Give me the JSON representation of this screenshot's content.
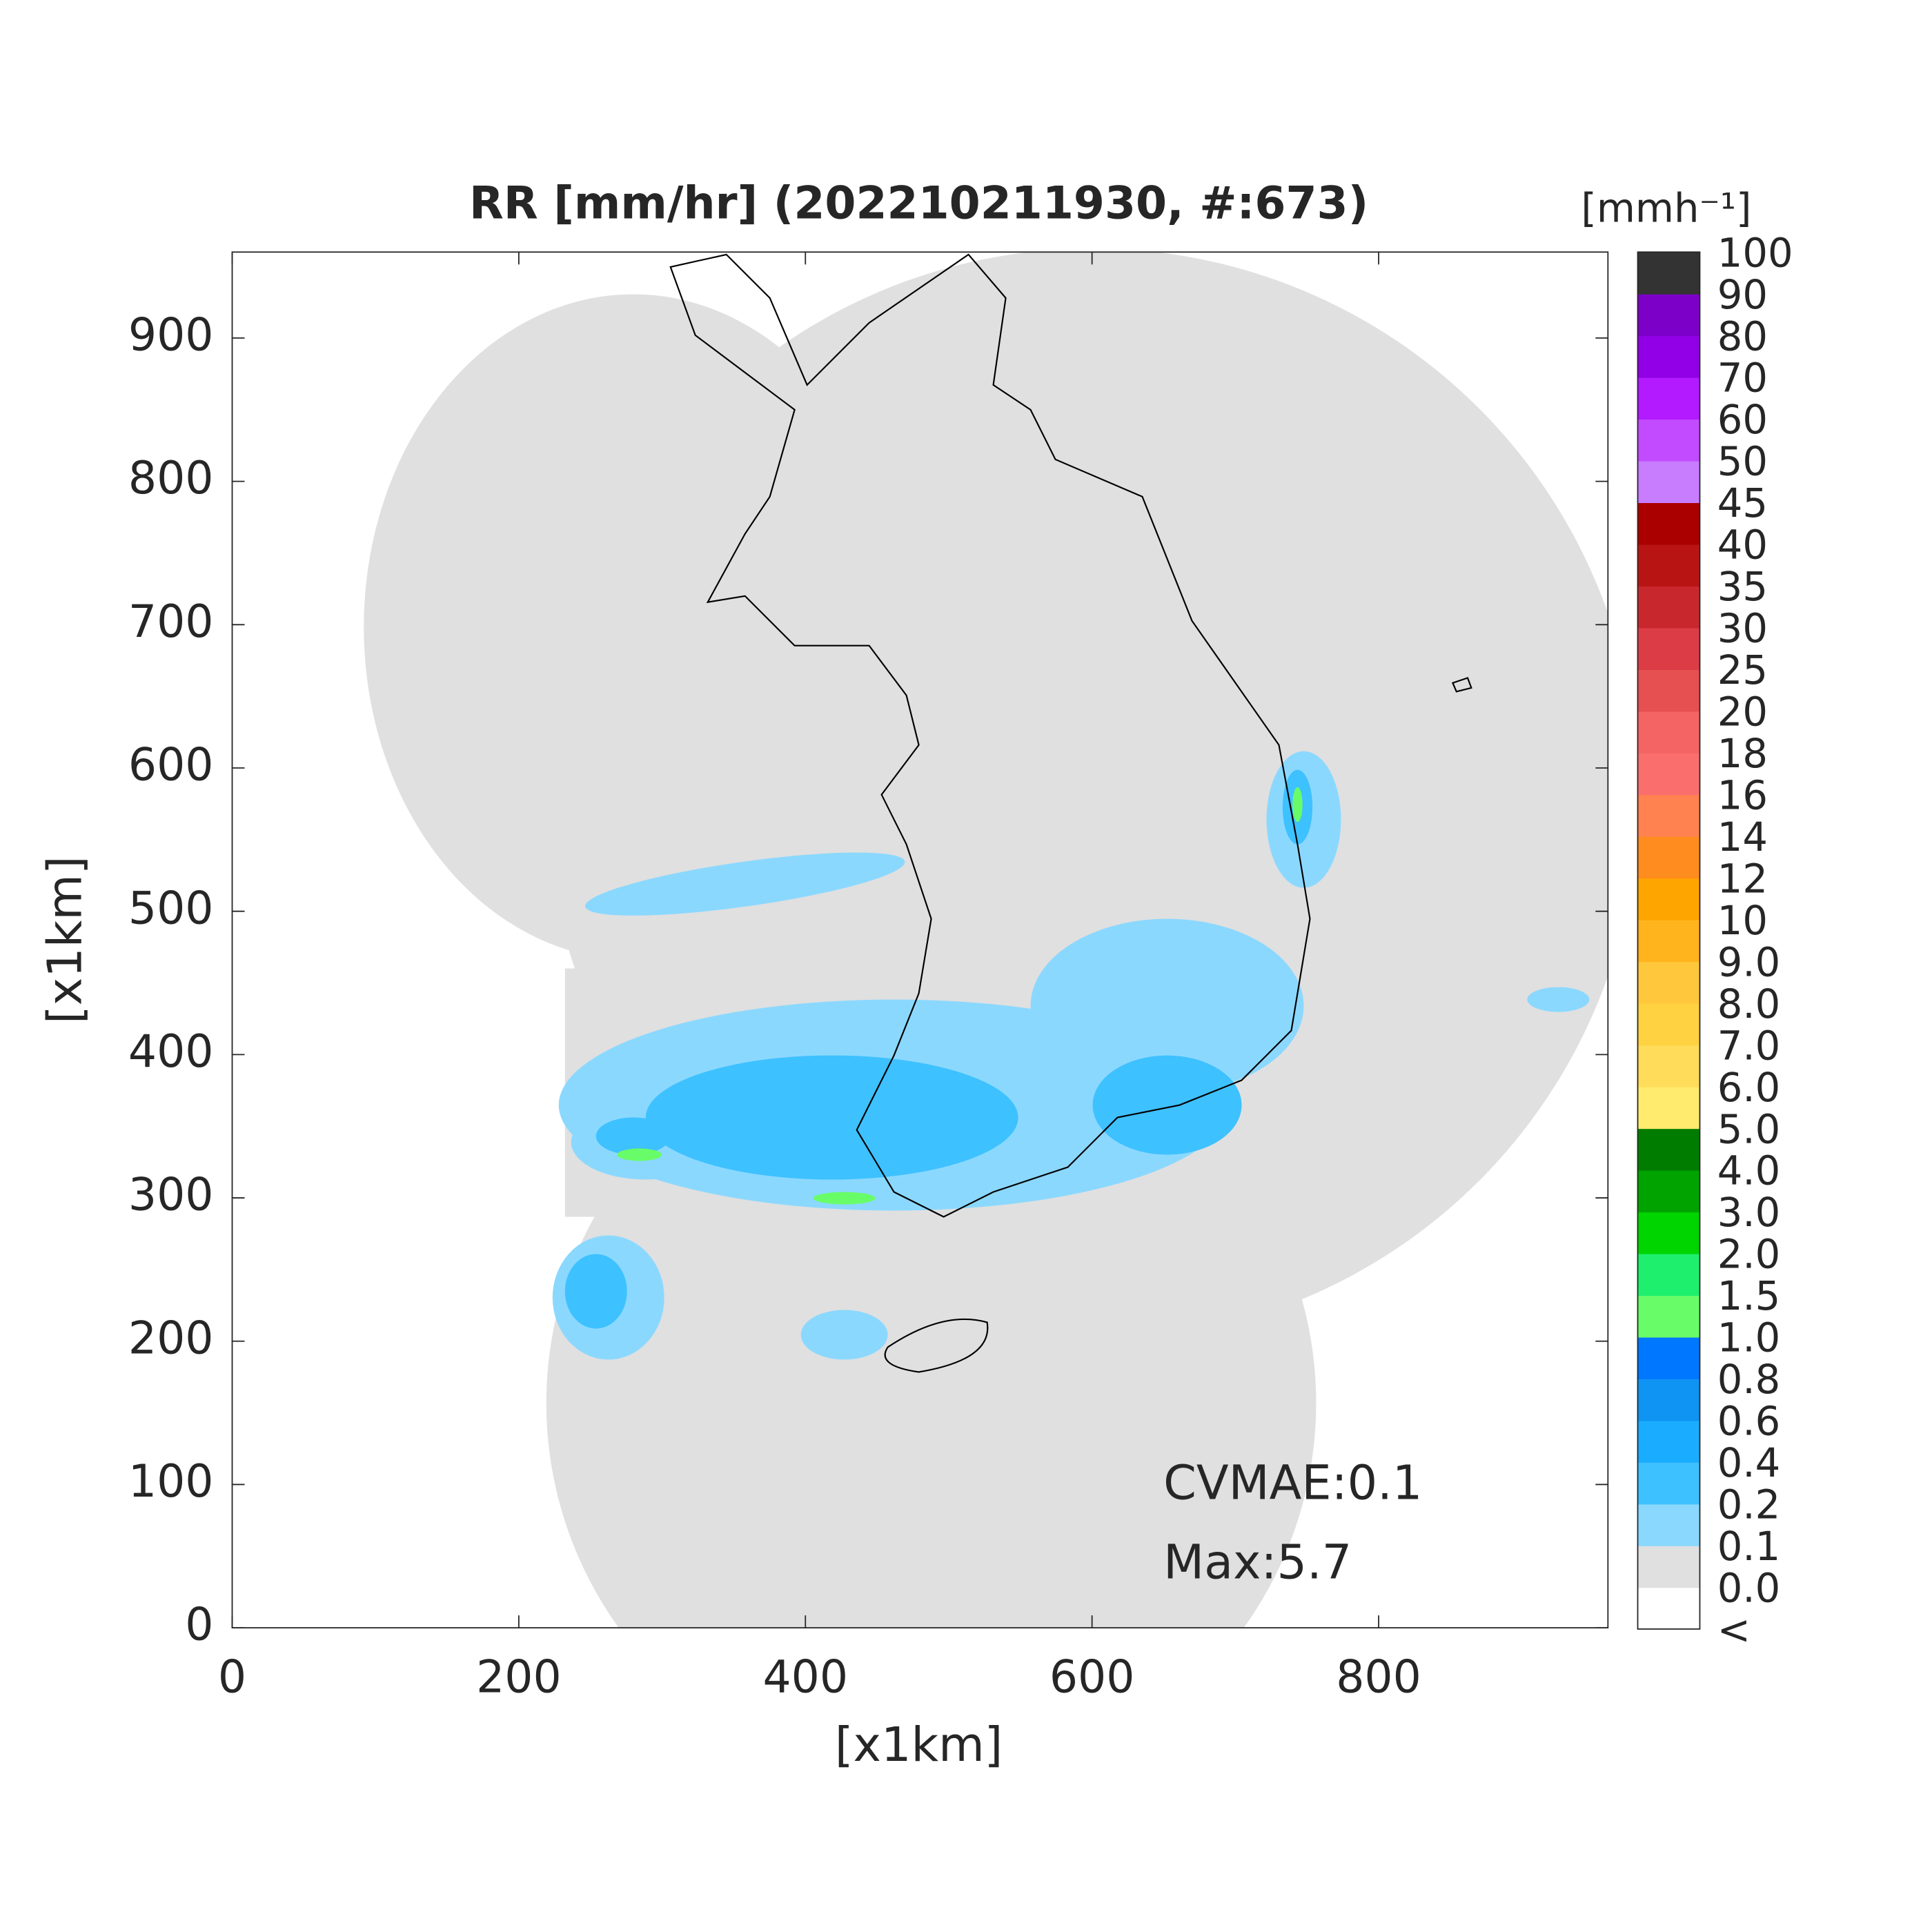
{
  "chart_data": {
    "type": "radar-map",
    "title": "RR [mm/hr] (202210211930, #:673)",
    "xlabel": "[x1km]",
    "ylabel": "[x1km]",
    "xlim": [
      0,
      960
    ],
    "ylim": [
      0,
      960
    ],
    "xticks": [
      0,
      200,
      400,
      600,
      800
    ],
    "yticks": [
      0,
      100,
      200,
      300,
      400,
      500,
      600,
      700,
      800,
      900
    ],
    "annotations": [
      "CVMAE:0.1",
      "Max:5.7"
    ],
    "colorbar": {
      "title": "[mmh⁻¹]",
      "labels": [
        "<",
        "0.0",
        "0.1",
        "0.2",
        "0.4",
        "0.6",
        "0.8",
        "1.0",
        "1.5",
        "2.0",
        "3.0",
        "4.0",
        "5.0",
        "6.0",
        "7.0",
        "8.0",
        "9.0",
        "10",
        "12",
        "14",
        "16",
        "18",
        "20",
        "25",
        "30",
        "35",
        "40",
        "45",
        "50",
        "60",
        "70",
        "80",
        "90",
        "100"
      ],
      "colors": [
        "#ffffff",
        "#e0e0e0",
        "#8bd8ff",
        "#3ec1ff",
        "#1aadff",
        "#0f94f3",
        "#0077ff",
        "#69fc69",
        "#1ef06e",
        "#00d500",
        "#00a300",
        "#007d00",
        "#ffeb6e",
        "#ffdc5a",
        "#ffd241",
        "#ffc83c",
        "#ffb41e",
        "#ffa500",
        "#ff8c1e",
        "#ff8250",
        "#fa6e6e",
        "#f56464",
        "#e65050",
        "#dc3c46",
        "#c8282d",
        "#b91414",
        "#aa0000",
        "#c87dff",
        "#c34bff",
        "#b31aff",
        "#9100e6",
        "#7c00c8",
        "#333333"
      ]
    }
  }
}
